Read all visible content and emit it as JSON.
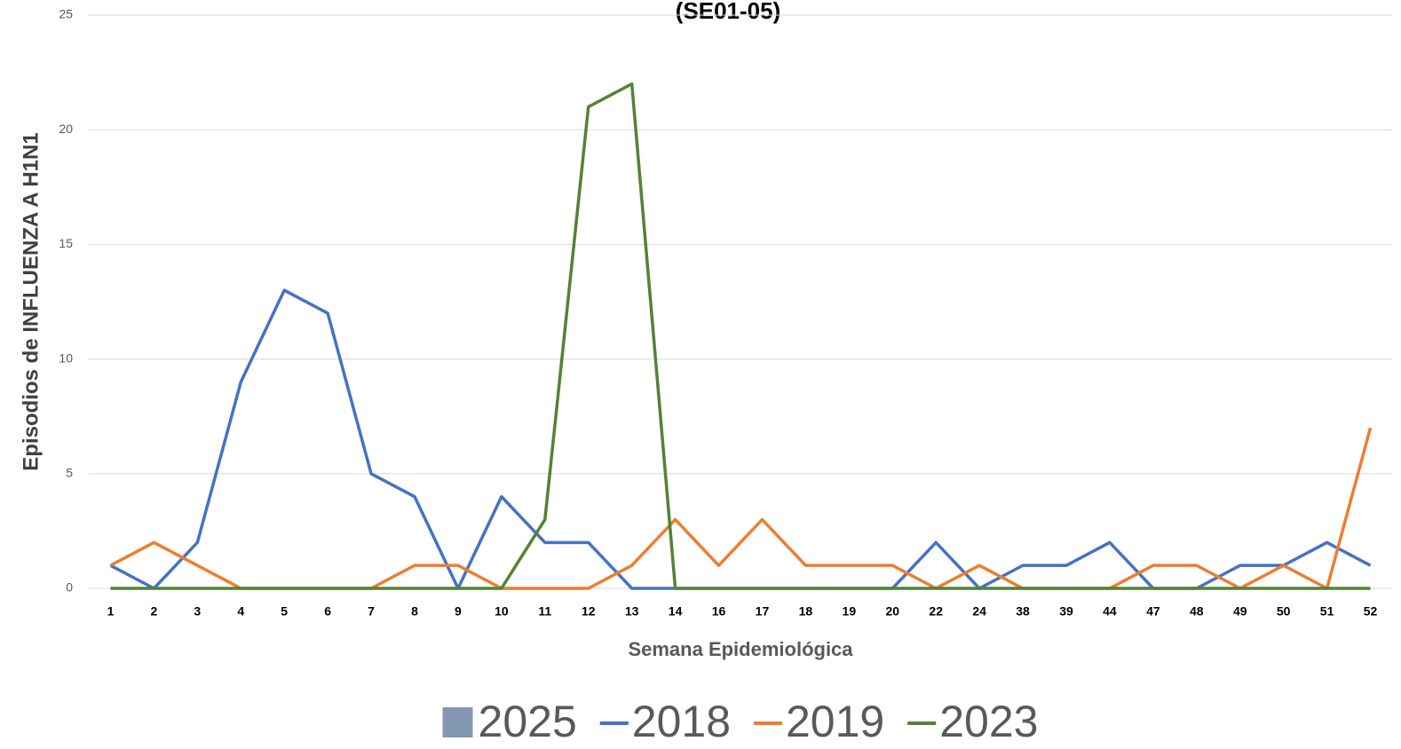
{
  "chart_data": {
    "type": "line",
    "title": "(SE01-05)",
    "x_label": "Semana Epidemiológica",
    "y_label": "Episodios de INFLUENZA A H1N1",
    "categories": [
      "1",
      "2",
      "3",
      "4",
      "5",
      "6",
      "7",
      "8",
      "9",
      "10",
      "11",
      "12",
      "13",
      "14",
      "16",
      "17",
      "18",
      "19",
      "20",
      "22",
      "24",
      "38",
      "39",
      "44",
      "47",
      "48",
      "49",
      "50",
      "51",
      "52"
    ],
    "series": [
      {
        "name": "2025",
        "type": "bar",
        "color": "#8497b0",
        "values": [
          null,
          null,
          null,
          null,
          null,
          null,
          null,
          null,
          null,
          null,
          null,
          null,
          null,
          null,
          null,
          null,
          null,
          null,
          null,
          null,
          null,
          null,
          null,
          null,
          null,
          null,
          null,
          null,
          null,
          null
        ]
      },
      {
        "name": "2018",
        "type": "line",
        "color": "#4472c4",
        "values": [
          1,
          0,
          2,
          9,
          13,
          12,
          5,
          4,
          0,
          4,
          2,
          2,
          0,
          0,
          0,
          0,
          0,
          0,
          0,
          2,
          0,
          1,
          1,
          2,
          0,
          0,
          1,
          1,
          2,
          1
        ]
      },
      {
        "name": "2019",
        "type": "line",
        "color": "#ed7d31",
        "values": [
          1,
          2,
          1,
          0,
          0,
          0,
          0,
          1,
          1,
          0,
          0,
          0,
          1,
          3,
          1,
          3,
          1,
          1,
          1,
          0,
          1,
          0,
          0,
          0,
          1,
          1,
          0,
          1,
          0,
          7
        ]
      },
      {
        "name": "2023",
        "type": "line",
        "color": "#548235",
        "values": [
          0,
          0,
          0,
          0,
          0,
          0,
          0,
          0,
          0,
          0,
          3,
          21,
          22,
          0,
          0,
          0,
          0,
          0,
          0,
          0,
          0,
          0,
          0,
          0,
          0,
          0,
          0,
          0,
          0,
          0
        ]
      }
    ],
    "ylim": [
      0,
      25
    ],
    "yticks": [
      0,
      5,
      10,
      15,
      20,
      25
    ],
    "grid": true,
    "legend": "bottom"
  }
}
